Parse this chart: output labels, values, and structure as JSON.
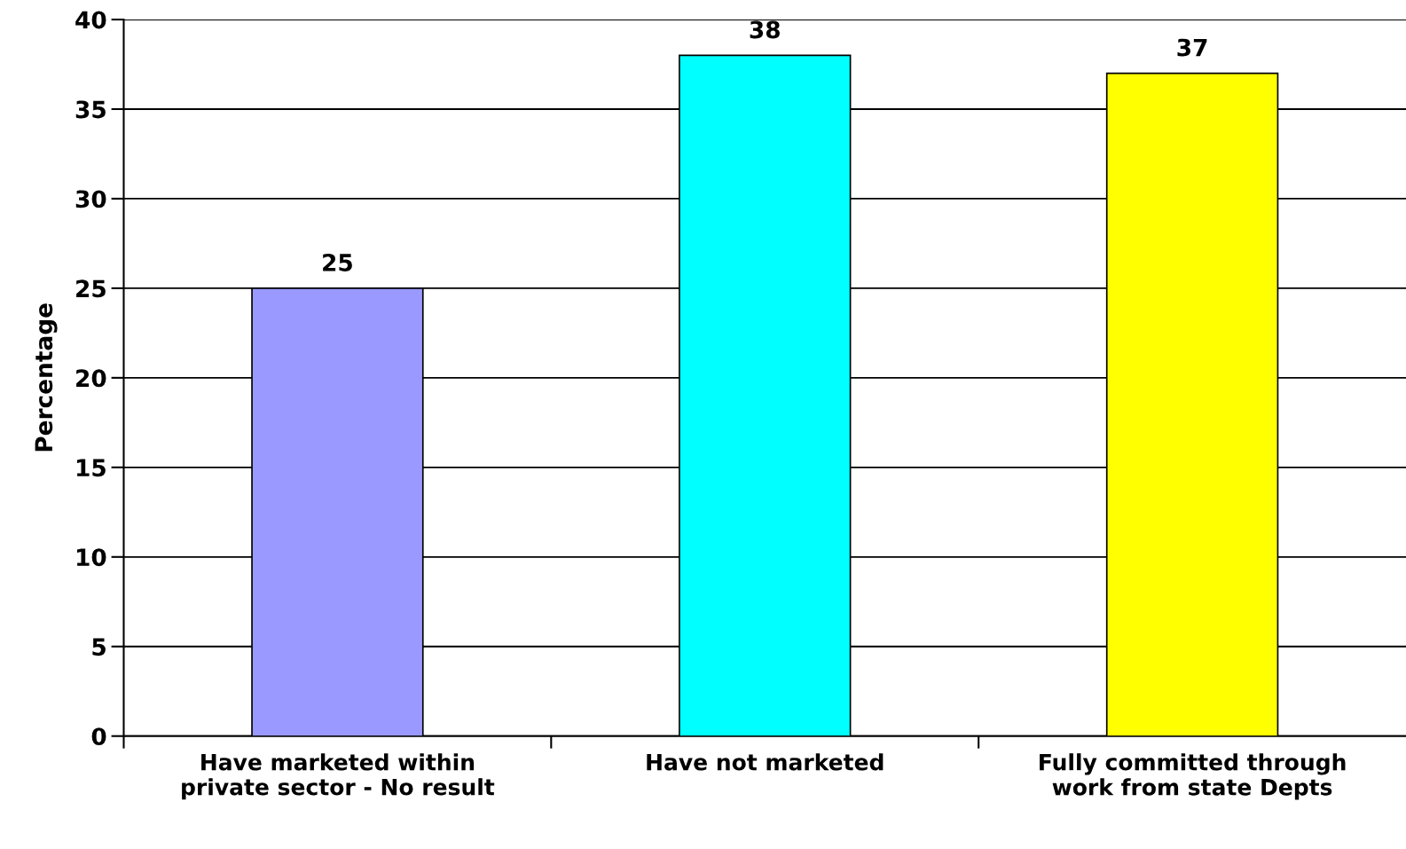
{
  "chart_data": {
    "type": "bar",
    "ylabel": "Percentage",
    "categories": [
      "Have marketed within\nprivate sector - No result",
      "Have not marketed",
      "Fully committed through\nwork from state Depts"
    ],
    "values": [
      25,
      38,
      37
    ],
    "colors": [
      "#9999ff",
      "#00ffff",
      "#ffff00"
    ],
    "ylim": [
      0,
      40
    ],
    "yticks": [
      0,
      5,
      10,
      15,
      20,
      25,
      30,
      35,
      40
    ],
    "grid": "y",
    "data_labels": true
  }
}
